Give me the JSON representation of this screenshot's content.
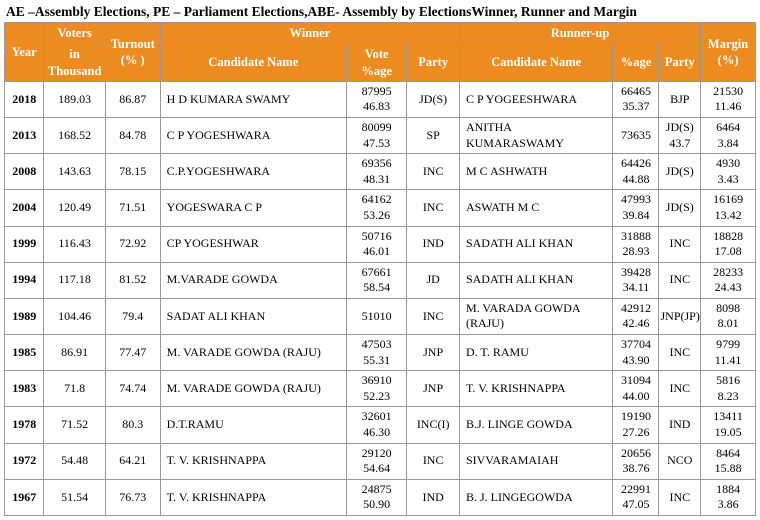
{
  "title": "AE –Assembly Elections, PE – Parliament Elections,ABE- Assembly by ElectionsWinner, Runner and Margin",
  "headers": {
    "year": "Year",
    "voters": "Voters",
    "votersSub": "in Thousand",
    "turnout": "Turnout (% )",
    "winner": "Winner",
    "runner": "Runner-up",
    "candName": "Candidate Name",
    "votePct": "Vote %age",
    "party": "Party",
    "pctAge": "%age",
    "margin": "Margin (%)"
  },
  "rows": [
    {
      "year": "2018",
      "voters": "189.03",
      "turnout": "86.87",
      "wname": "H D KUMARA SWAMY",
      "wvote1": "87995",
      "wvote2": "46.83",
      "wparty": "JD(S)",
      "rname": "C P YOGEESHWARA",
      "rvote1": "66465",
      "rvote2": "35.37",
      "rparty": "BJP",
      "m1": "21530",
      "m2": "11.46"
    },
    {
      "year": "2013",
      "voters": "168.52",
      "turnout": "84.78",
      "wname": "C P YOGESHWARA",
      "wvote1": "80099",
      "wvote2": "47.53",
      "wparty": "SP",
      "rname": "ANITHA KUMARASWAMY",
      "rvote1": "73635",
      "rvote2": "",
      "rparty": "JD(S) 43.7",
      "m1": "6464",
      "m2": "3.84"
    },
    {
      "year": "2008",
      "voters": "143.63",
      "turnout": "78.15",
      "wname": "C.P.YOGESHWARA",
      "wvote1": "69356",
      "wvote2": "48.31",
      "wparty": "INC",
      "rname": "M C ASHWATH",
      "rvote1": "64426",
      "rvote2": "44.88",
      "rparty": "JD(S)",
      "m1": "4930",
      "m2": "3.43"
    },
    {
      "year": "2004",
      "voters": "120.49",
      "turnout": "71.51",
      "wname": "YOGESWARA C P",
      "wvote1": "64162",
      "wvote2": "53.26",
      "wparty": "INC",
      "rname": "ASWATH M C",
      "rvote1": "47993",
      "rvote2": "39.84",
      "rparty": "JD(S)",
      "m1": "16169",
      "m2": "13.42"
    },
    {
      "year": "1999",
      "voters": "116.43",
      "turnout": "72.92",
      "wname": "CP YOGESHWAR",
      "wvote1": "50716",
      "wvote2": "46.01",
      "wparty": "IND",
      "rname": "SADATH ALI KHAN",
      "rvote1": "31888",
      "rvote2": "28.93",
      "rparty": "INC",
      "m1": "18828",
      "m2": "17.08"
    },
    {
      "year": "1994",
      "voters": "117.18",
      "turnout": "81.52",
      "wname": "M.VARADE GOWDA",
      "wvote1": "67661",
      "wvote2": "58.54",
      "wparty": "JD",
      "rname": "SADATH ALI KHAN",
      "rvote1": "39428",
      "rvote2": "34.11",
      "rparty": "INC",
      "m1": "28233",
      "m2": "24.43"
    },
    {
      "year": "1989",
      "voters": "104.46",
      "turnout": "79.4",
      "wname": "SADAT ALI KHAN",
      "wvote1": "51010",
      "wvote2": "",
      "wparty": "INC",
      "rname": "M. VARADA GOWDA (RAJU)",
      "rvote1": "42912",
      "rvote2": "42.46",
      "rparty": "JNP(JP)",
      "m1": "8098",
      "m2": "8.01"
    },
    {
      "year": "1985",
      "voters": "86.91",
      "turnout": "77.47",
      "wname": "M. VARADE GOWDA (RAJU)",
      "wvote1": "47503",
      "wvote2": "55.31",
      "wparty": "JNP",
      "rname": "D. T. RAMU",
      "rvote1": "37704",
      "rvote2": "43.90",
      "rparty": "INC",
      "m1": "9799",
      "m2": "11.41"
    },
    {
      "year": "1983",
      "voters": "71.8",
      "turnout": "74.74",
      "wname": "M. VARADE GOWDA (RAJU)",
      "wvote1": "36910",
      "wvote2": "52.23",
      "wparty": "JNP",
      "rname": "T. V. KRISHNAPPA",
      "rvote1": "31094",
      "rvote2": "44.00",
      "rparty": "INC",
      "m1": "5816",
      "m2": "8.23"
    },
    {
      "year": "1978",
      "voters": "71.52",
      "turnout": "80.3",
      "wname": "D.T.RAMU",
      "wvote1": "32601",
      "wvote2": "46.30",
      "wparty": "INC(I)",
      "rname": "B.J. LINGE GOWDA",
      "rvote1": "19190",
      "rvote2": "27.26",
      "rparty": "IND",
      "m1": "13411",
      "m2": "19.05"
    },
    {
      "year": "1972",
      "voters": "54.48",
      "turnout": "64.21",
      "wname": "T. V. KRISHNAPPA",
      "wvote1": "29120",
      "wvote2": "54.64",
      "wparty": "INC",
      "rname": "SIVVARAMAIAH",
      "rvote1": "20656",
      "rvote2": "38.76",
      "rparty": "NCO",
      "m1": "8464",
      "m2": "15.88"
    },
    {
      "year": "1967",
      "voters": "51.54",
      "turnout": "76.73",
      "wname": "T. V. KRISHNAPPA",
      "wvote1": "24875",
      "wvote2": "50.90",
      "wparty": "IND",
      "rname": "B. J. LINGEGOWDA",
      "rvote1": "22991",
      "rvote2": "47.05",
      "rparty": "INC",
      "m1": "1884",
      "m2": "3.86"
    }
  ]
}
